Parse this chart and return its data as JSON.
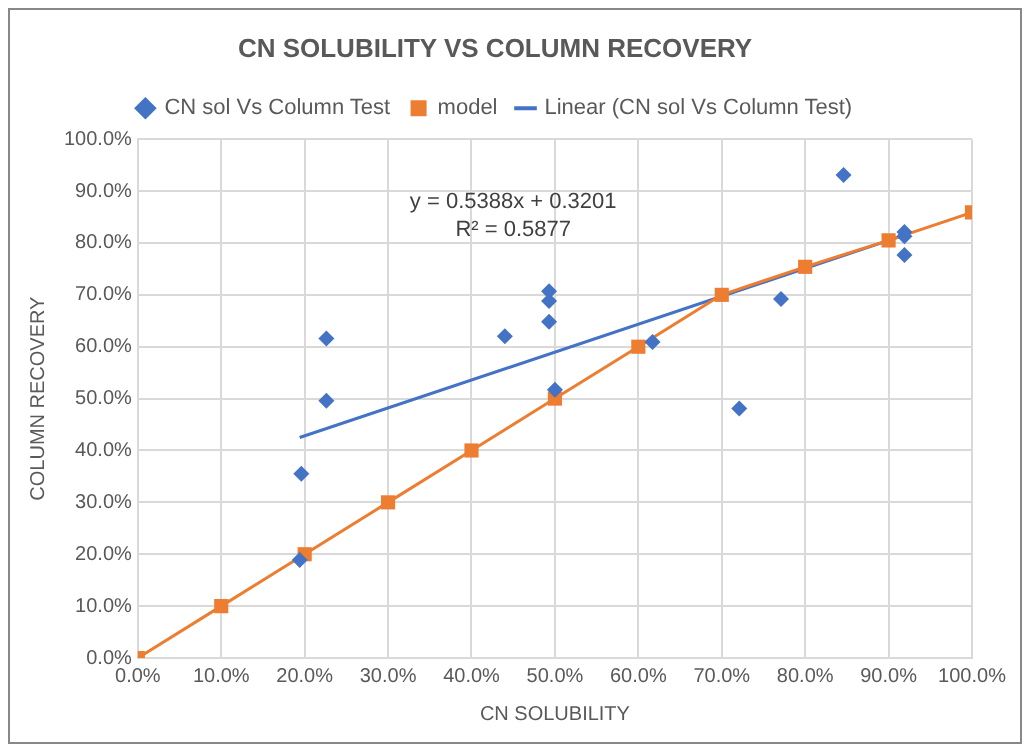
{
  "chart_data": {
    "type": "scatter",
    "title": "CN SOLUBILITY VS COLUMN RECOVERY",
    "xlabel": "CN SOLUBILITY",
    "ylabel": "COLUMN RECOVERY",
    "xlim": [
      0,
      100
    ],
    "xticks": [
      {
        "value": 0,
        "label": "0.0%"
      },
      {
        "value": 10,
        "label": "10.0%"
      },
      {
        "value": 20,
        "label": "20.0%"
      },
      {
        "value": 30,
        "label": "30.0%"
      },
      {
        "value": 40,
        "label": "40.0%"
      },
      {
        "value": 50,
        "label": "50.0%"
      },
      {
        "value": 60,
        "label": "60.0%"
      },
      {
        "value": 70,
        "label": "70.0%"
      },
      {
        "value": 80,
        "label": "80.0%"
      },
      {
        "value": 90,
        "label": "90.0%"
      },
      {
        "value": 100,
        "label": "100.0%"
      }
    ],
    "ylim": [
      0,
      100
    ],
    "yticks": [
      {
        "value": 0,
        "label": "0.0%"
      },
      {
        "value": 10,
        "label": "10.0%"
      },
      {
        "value": 20,
        "label": "20.0%"
      },
      {
        "value": 30,
        "label": "30.0%"
      },
      {
        "value": 40,
        "label": "40.0%"
      },
      {
        "value": 50,
        "label": "50.0%"
      },
      {
        "value": 60,
        "label": "60.0%"
      },
      {
        "value": 70,
        "label": "70.0%"
      },
      {
        "value": 80,
        "label": "80.0%"
      },
      {
        "value": 90,
        "label": "90.0%"
      },
      {
        "value": 100,
        "label": "100.0%"
      }
    ],
    "grid": true,
    "legend": "top",
    "annotations": [
      "y = 0.5388x + 0.3201",
      "R² = 0.5877"
    ],
    "series": [
      {
        "name": "CN sol Vs Column Test",
        "type": "scatter",
        "marker": "diamond",
        "color": "#4472c4",
        "x": [
          19.4,
          19.6,
          22.6,
          22.6,
          44,
          49.3,
          49.3,
          49.3,
          50,
          61.7,
          72.1,
          77.1,
          84.6,
          91.9,
          91.9,
          91.9
        ],
        "values": [
          18.9,
          35.5,
          49.6,
          61.6,
          62,
          70.7,
          68.8,
          64.8,
          51.7,
          60.9,
          48.1,
          69.2,
          93.1,
          82.1,
          81.3,
          77.7
        ]
      },
      {
        "name": "model",
        "type": "line",
        "marker": "square",
        "color": "#ed7d31",
        "x": [
          0,
          10,
          20,
          30,
          40,
          50,
          60,
          70,
          80,
          90,
          100
        ],
        "values": [
          0,
          10,
          20,
          30,
          40,
          50,
          60,
          70,
          75.4,
          80.5,
          85.9
        ]
      },
      {
        "name": "Linear (CN sol Vs Column Test)",
        "type": "line",
        "marker": "none",
        "color": "#4472c4",
        "x": [
          19.4,
          91.9
        ],
        "values": [
          42.5,
          81.5
        ]
      }
    ]
  }
}
